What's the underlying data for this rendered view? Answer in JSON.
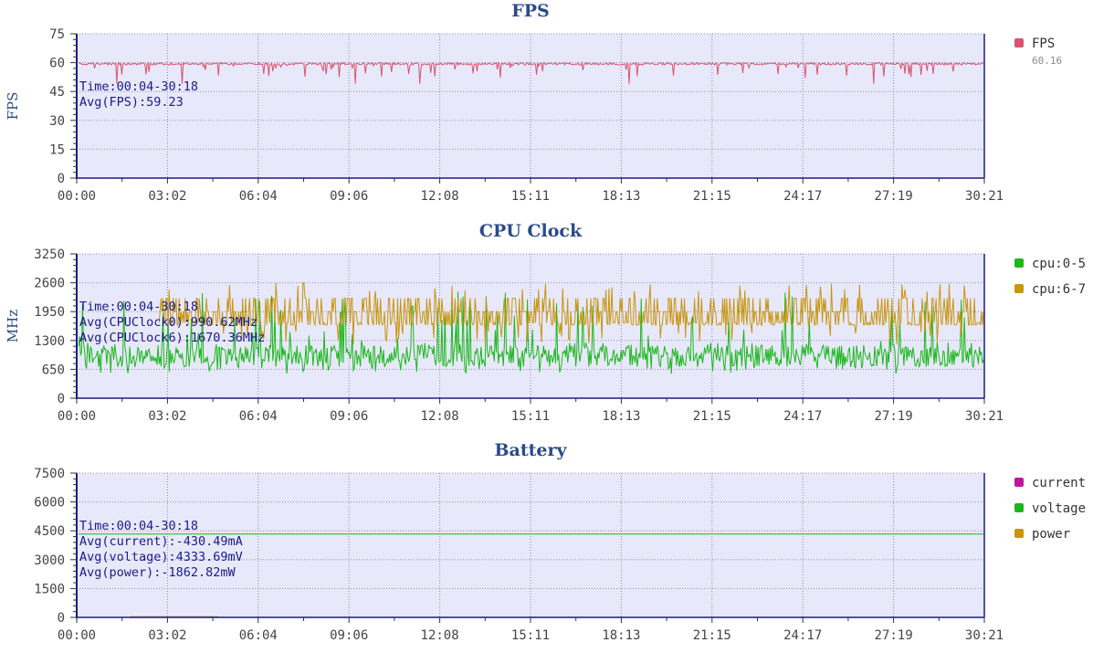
{
  "chart_data": [
    {
      "type": "line",
      "title": "FPS",
      "ylabel": "FPS",
      "ylim": [
        0,
        75
      ],
      "yticks": [
        "0",
        "15",
        "30",
        "45",
        "60",
        "75"
      ],
      "xticks": [
        "00:00",
        "03:02",
        "06:04",
        "09:06",
        "12:08",
        "15:11",
        "18:13",
        "21:15",
        "24:17",
        "27:19",
        "30:21"
      ],
      "annotations": [
        "Time:00:04-30:18",
        "Avg(FPS):59.23"
      ],
      "series": [
        {
          "name": "FPS",
          "color": "#d9536e",
          "legend_value": "60.16",
          "baseline": 60,
          "typical_min": 52,
          "extreme_min": 49
        }
      ]
    },
    {
      "type": "line",
      "title": "CPU Clock",
      "ylabel": "MHz",
      "ylim": [
        0,
        3250
      ],
      "yticks": [
        "0",
        "650",
        "1300",
        "1950",
        "2600",
        "3250"
      ],
      "xticks": [
        "00:00",
        "03:02",
        "06:04",
        "09:06",
        "12:08",
        "15:11",
        "18:13",
        "21:15",
        "24:17",
        "27:19",
        "30:21"
      ],
      "annotations": [
        "Time:00:04-30:18",
        "Avg(CPUClock0):990.62MHz",
        "Avg(CPUClock6):1670.36MHz"
      ],
      "series": [
        {
          "name": "cpu:0-5",
          "color": "#1bb81b",
          "avg": 990.62,
          "min": 550,
          "max": 2400
        },
        {
          "name": "cpu:6-7",
          "color": "#c8960f",
          "avg": 1670.36,
          "min": 1200,
          "max": 2600
        }
      ]
    },
    {
      "type": "line",
      "title": "Battery",
      "ylabel": "",
      "ylim": [
        0,
        7500
      ],
      "yticks": [
        "0",
        "1500",
        "3000",
        "4500",
        "6000",
        "7500"
      ],
      "xticks": [
        "00:00",
        "03:02",
        "06:04",
        "09:06",
        "12:08",
        "15:11",
        "18:13",
        "21:15",
        "24:17",
        "27:19",
        "30:21"
      ],
      "annotations": [
        "Time:00:04-30:18",
        "Avg(current):-430.49mA",
        "Avg(voltage):4333.69mV",
        "Avg(power):-1862.82mW"
      ],
      "series": [
        {
          "name": "current",
          "color": "#c0169b",
          "avg": -430.49
        },
        {
          "name": "voltage",
          "color": "#1bb81b",
          "avg": 4333.69
        },
        {
          "name": "power",
          "color": "#c8960f",
          "avg": -1862.82
        }
      ]
    }
  ]
}
